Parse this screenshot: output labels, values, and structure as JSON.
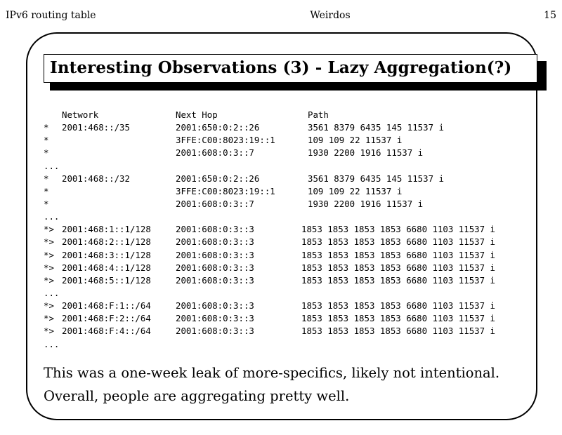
{
  "header": {
    "left": "IPv6 routing table",
    "center": "Weirdos",
    "right": "15"
  },
  "slide": {
    "title": "Interesting Observations (3) - Lazy Aggregation(?)",
    "table": {
      "columns": [
        "Network",
        "Next Hop",
        "Path"
      ],
      "rows": [
        {
          "marker": "*",
          "network": "2001:468::/35",
          "next_hop": "2001:650:0:2::26",
          "path": "3561 8379 6435 145 11537 i"
        },
        {
          "marker": "*",
          "network": "",
          "next_hop": "3FFE:C00:8023:19::1",
          "path": "109 109 22 11537 i"
        },
        {
          "marker": "*",
          "network": "",
          "next_hop": "2001:608:0:3::7",
          "path": "1930 2200 1916 11537 i"
        },
        {
          "marker": "...",
          "network": "",
          "next_hop": "",
          "path": ""
        },
        {
          "marker": "*",
          "network": "2001:468::/32",
          "next_hop": "2001:650:0:2::26",
          "path": "3561 8379 6435 145 11537 i"
        },
        {
          "marker": "*",
          "network": "",
          "next_hop": "3FFE:C00:8023:19::1",
          "path": "109 109 22 11537 i"
        },
        {
          "marker": "*",
          "network": "",
          "next_hop": "2001:608:0:3::7",
          "path": "1930 2200 1916 11537 i"
        },
        {
          "marker": "...",
          "network": "",
          "next_hop": "",
          "path": ""
        },
        {
          "marker": "*>",
          "network": "2001:468:1::1/128",
          "next_hop": "2001:608:0:3::3",
          "path": "1853 1853 1853 1853 6680 1103 11537 i"
        },
        {
          "marker": "*>",
          "network": "2001:468:2::1/128",
          "next_hop": "2001:608:0:3::3",
          "path": "1853 1853 1853 1853 6680 1103 11537 i"
        },
        {
          "marker": "*>",
          "network": "2001:468:3::1/128",
          "next_hop": "2001:608:0:3::3",
          "path": "1853 1853 1853 1853 6680 1103 11537 i"
        },
        {
          "marker": "*>",
          "network": "2001:468:4::1/128",
          "next_hop": "2001:608:0:3::3",
          "path": "1853 1853 1853 1853 6680 1103 11537 i"
        },
        {
          "marker": "*>",
          "network": "2001:468:5::1/128",
          "next_hop": "2001:608:0:3::3",
          "path": "1853 1853 1853 1853 6680 1103 11537 i"
        },
        {
          "marker": "...",
          "network": "",
          "next_hop": "",
          "path": ""
        },
        {
          "marker": "*>",
          "network": "2001:468:F:1::/64",
          "next_hop": "2001:608:0:3::3",
          "path": "1853 1853 1853 1853 6680 1103 11537 i"
        },
        {
          "marker": "*>",
          "network": "2001:468:F:2::/64",
          "next_hop": "2001:608:0:3::3",
          "path": "1853 1853 1853 1853 6680 1103 11537 i"
        },
        {
          "marker": "*>",
          "network": "2001:468:F:4::/64",
          "next_hop": "2001:608:0:3::3",
          "path": "1853 1853 1853 1853 6680 1103 11537 i"
        },
        {
          "marker": "...",
          "network": "",
          "next_hop": "",
          "path": ""
        }
      ]
    },
    "footnotes": [
      "This was a one-week leak of more-specifics, likely not intentional.",
      "Overall, people are aggregating pretty well."
    ]
  }
}
